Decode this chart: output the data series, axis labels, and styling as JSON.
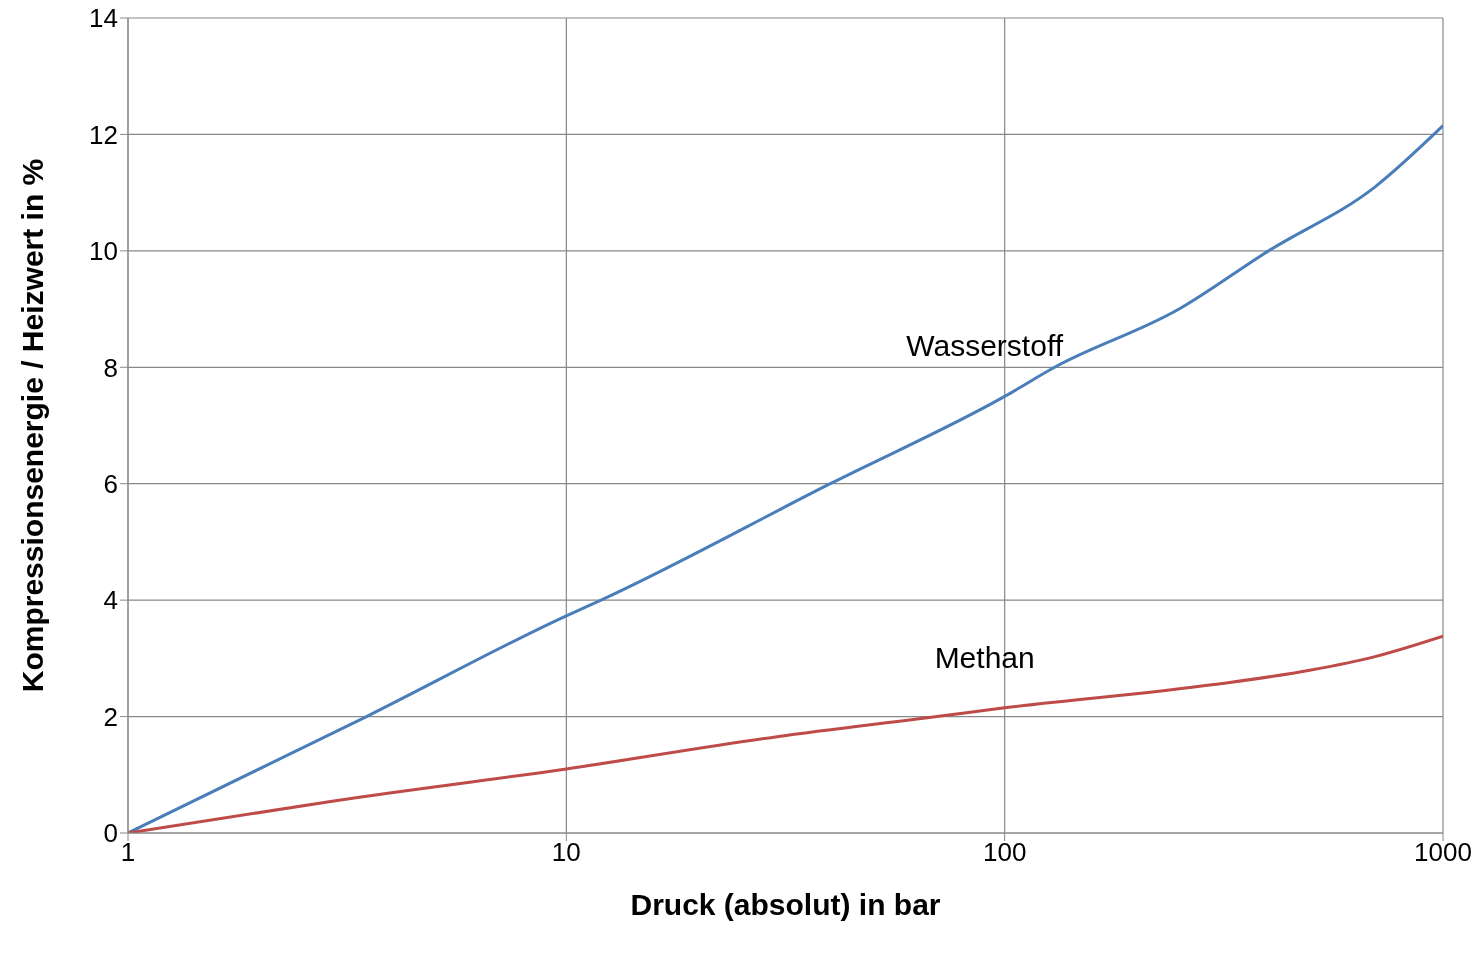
{
  "chart_data": {
    "type": "line",
    "xlabel": "Druck (absolut) in bar",
    "ylabel": "Kompressionsenergie / Heizwert in %",
    "log": "x",
    "xlim": [
      1,
      1000
    ],
    "xticks": [
      1,
      10,
      100,
      1000
    ],
    "ylim": [
      0,
      14
    ],
    "yticks": [
      0,
      2,
      4,
      6,
      8,
      10,
      12,
      14
    ],
    "grid": true,
    "legend": false,
    "marker": "none",
    "line_style": "solid",
    "series": [
      {
        "name": "Wasserstoff",
        "color": "#4a7ebb",
        "x": [
          1,
          3.5,
          10,
          12,
          40,
          100,
          130,
          250,
          400,
          700,
          1000
        ],
        "values": [
          0,
          2,
          3.73,
          4,
          6,
          7.5,
          8,
          9,
          10,
          11.1,
          12.15
        ]
      },
      {
        "name": "Methan",
        "color": "#be4b48",
        "x": [
          1,
          3,
          10,
          30,
          70,
          100,
          300,
          500,
          700,
          1000
        ],
        "values": [
          0,
          0.56,
          1.1,
          1.65,
          2,
          2.15,
          2.55,
          2.8,
          3.03,
          3.38
        ]
      }
    ]
  }
}
